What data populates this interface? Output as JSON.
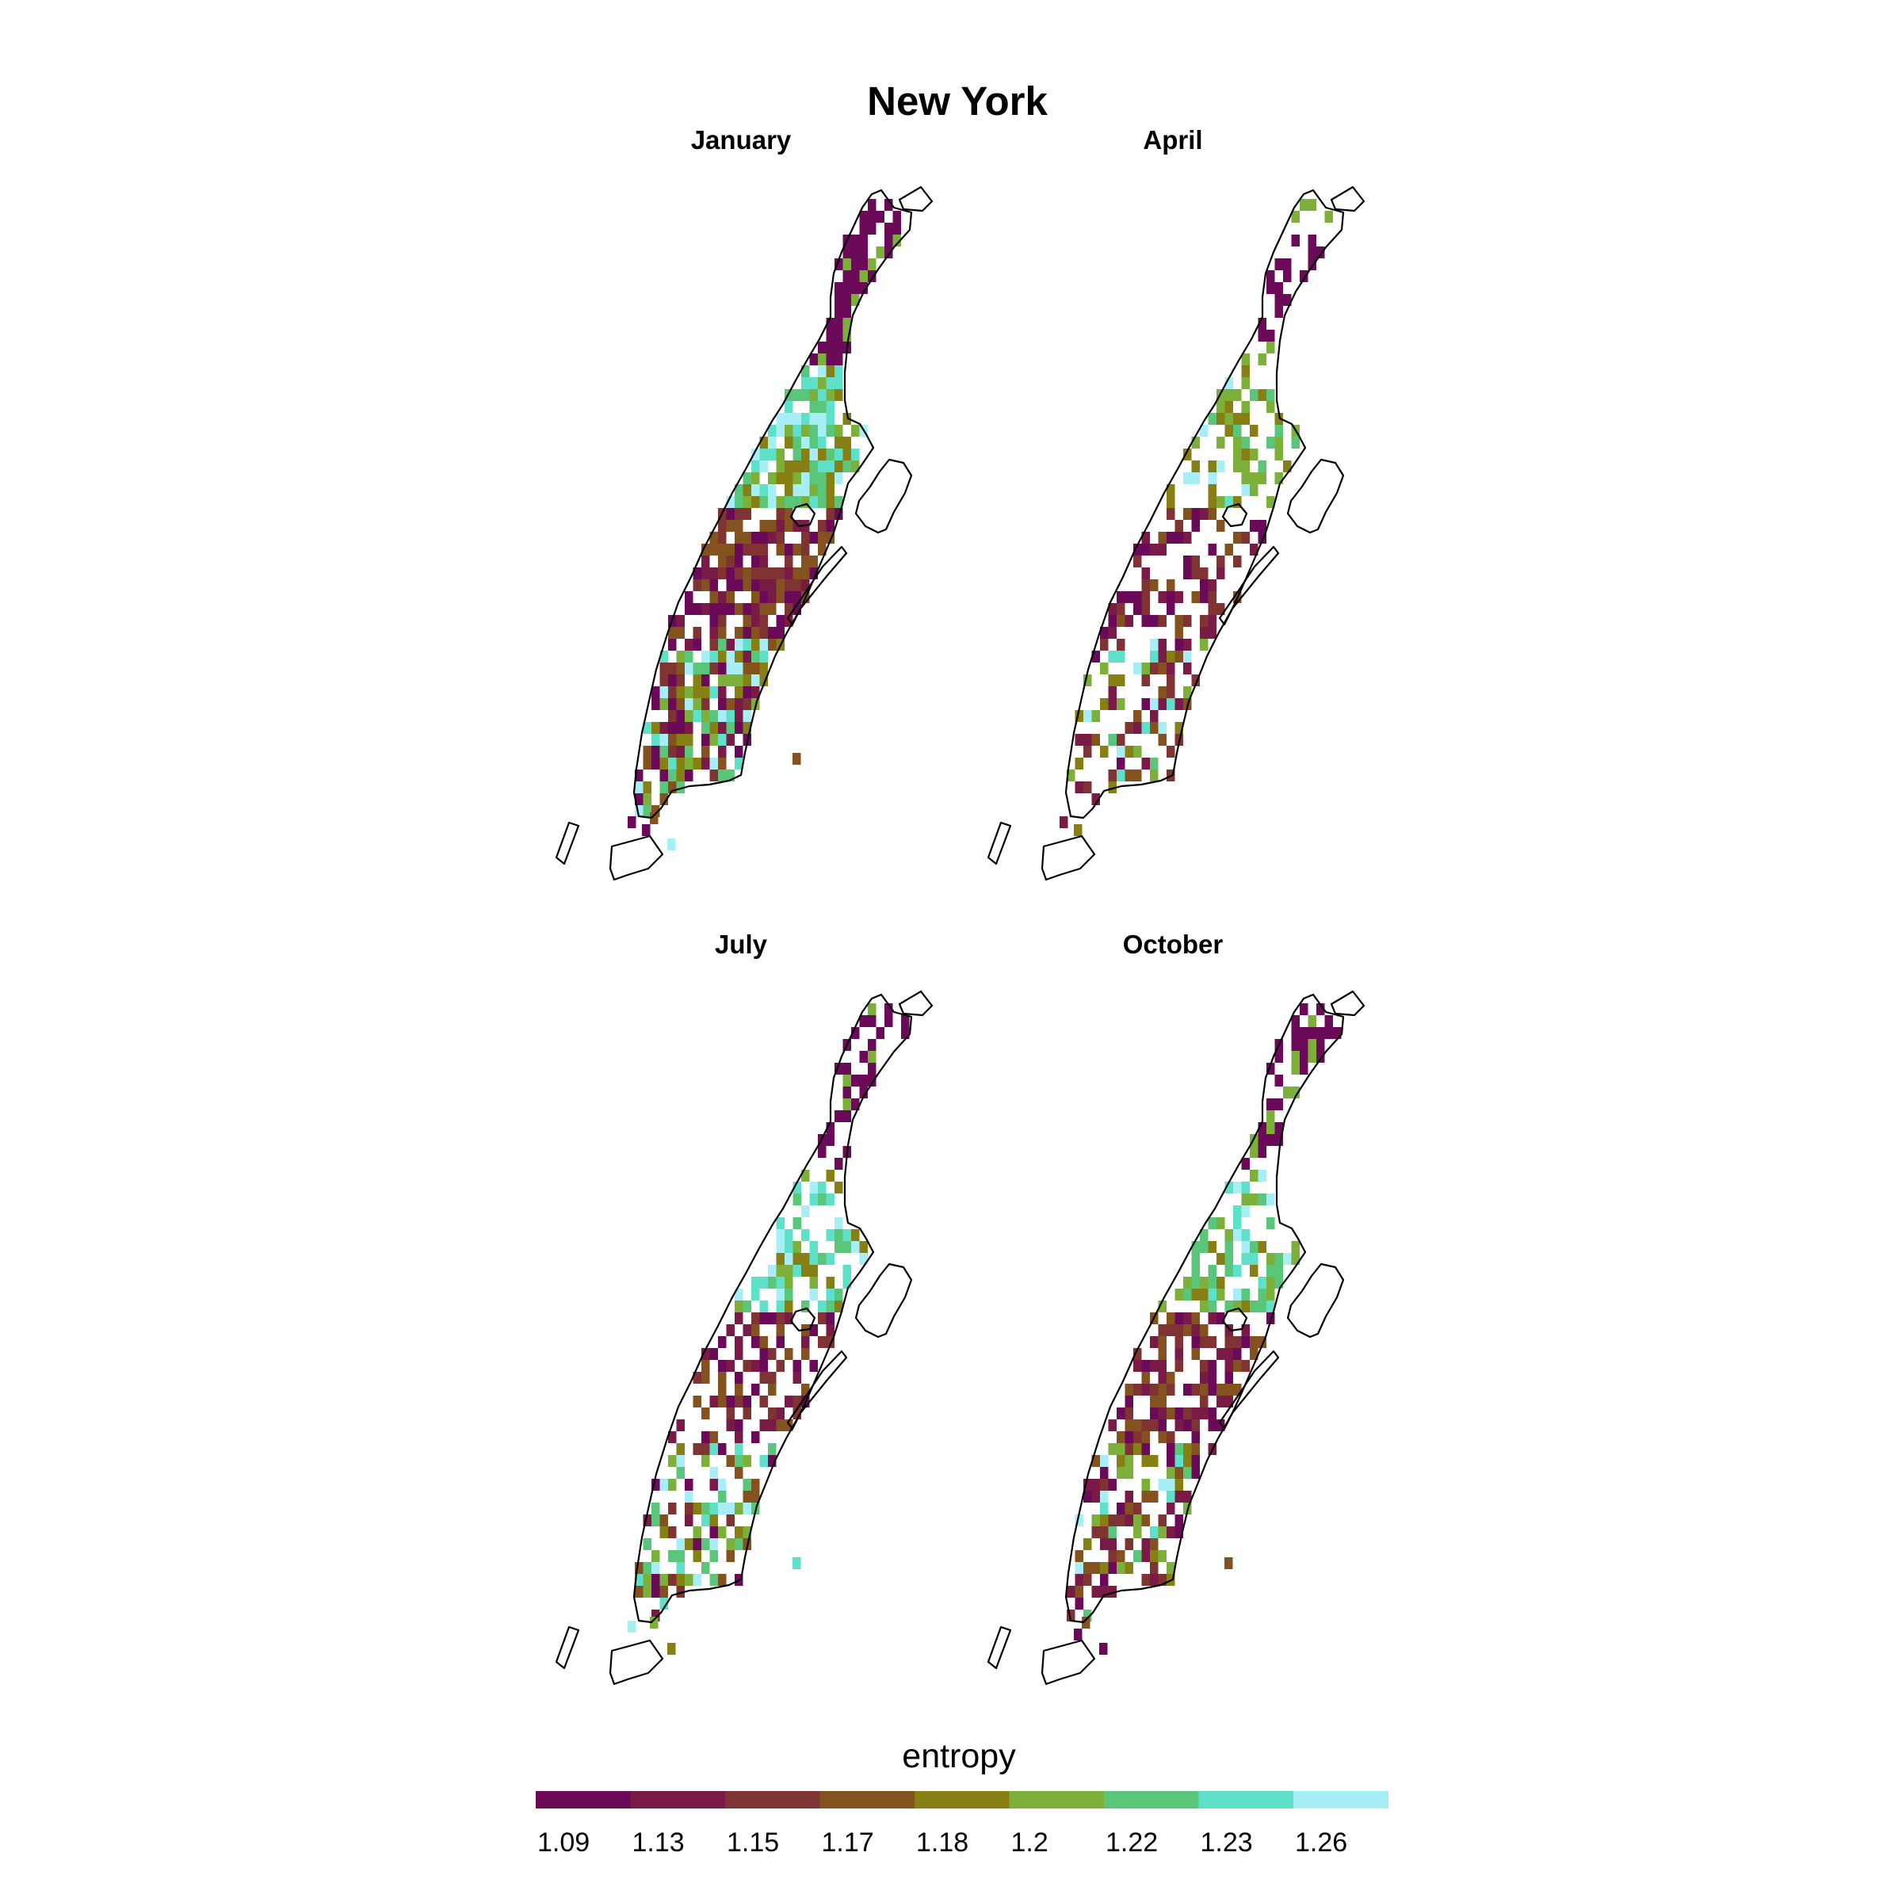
{
  "title": "New York",
  "panels": [
    {
      "label": "January"
    },
    {
      "label": "April"
    },
    {
      "label": "July"
    },
    {
      "label": "October"
    }
  ],
  "legend": {
    "title": "entropy",
    "ticks": [
      "1.09",
      "1.13",
      "1.15",
      "1.17",
      "1.18",
      "1.2",
      "1.22",
      "1.23",
      "1.26"
    ],
    "colors": [
      "#6c0a5a",
      "#7a1b47",
      "#7f3333",
      "#84521f",
      "#867f14",
      "#7db03a",
      "#5ac67a",
      "#5fe0c8",
      "#a8eef6"
    ]
  },
  "chart_data": {
    "type": "heatmap",
    "title": "New York",
    "facets": [
      "January",
      "April",
      "July",
      "October"
    ],
    "color_variable": "entropy",
    "color_scale": {
      "breaks": [
        1.09,
        1.13,
        1.15,
        1.17,
        1.18,
        1.2,
        1.22,
        1.23,
        1.26
      ],
      "colors": [
        "#6c0a5a",
        "#7a1b47",
        "#7f3333",
        "#84521f",
        "#867f14",
        "#7db03a",
        "#5ac67a",
        "#5fe0c8",
        "#a8eef6"
      ]
    },
    "region": "Manhattan",
    "legend_position": "bottom"
  }
}
